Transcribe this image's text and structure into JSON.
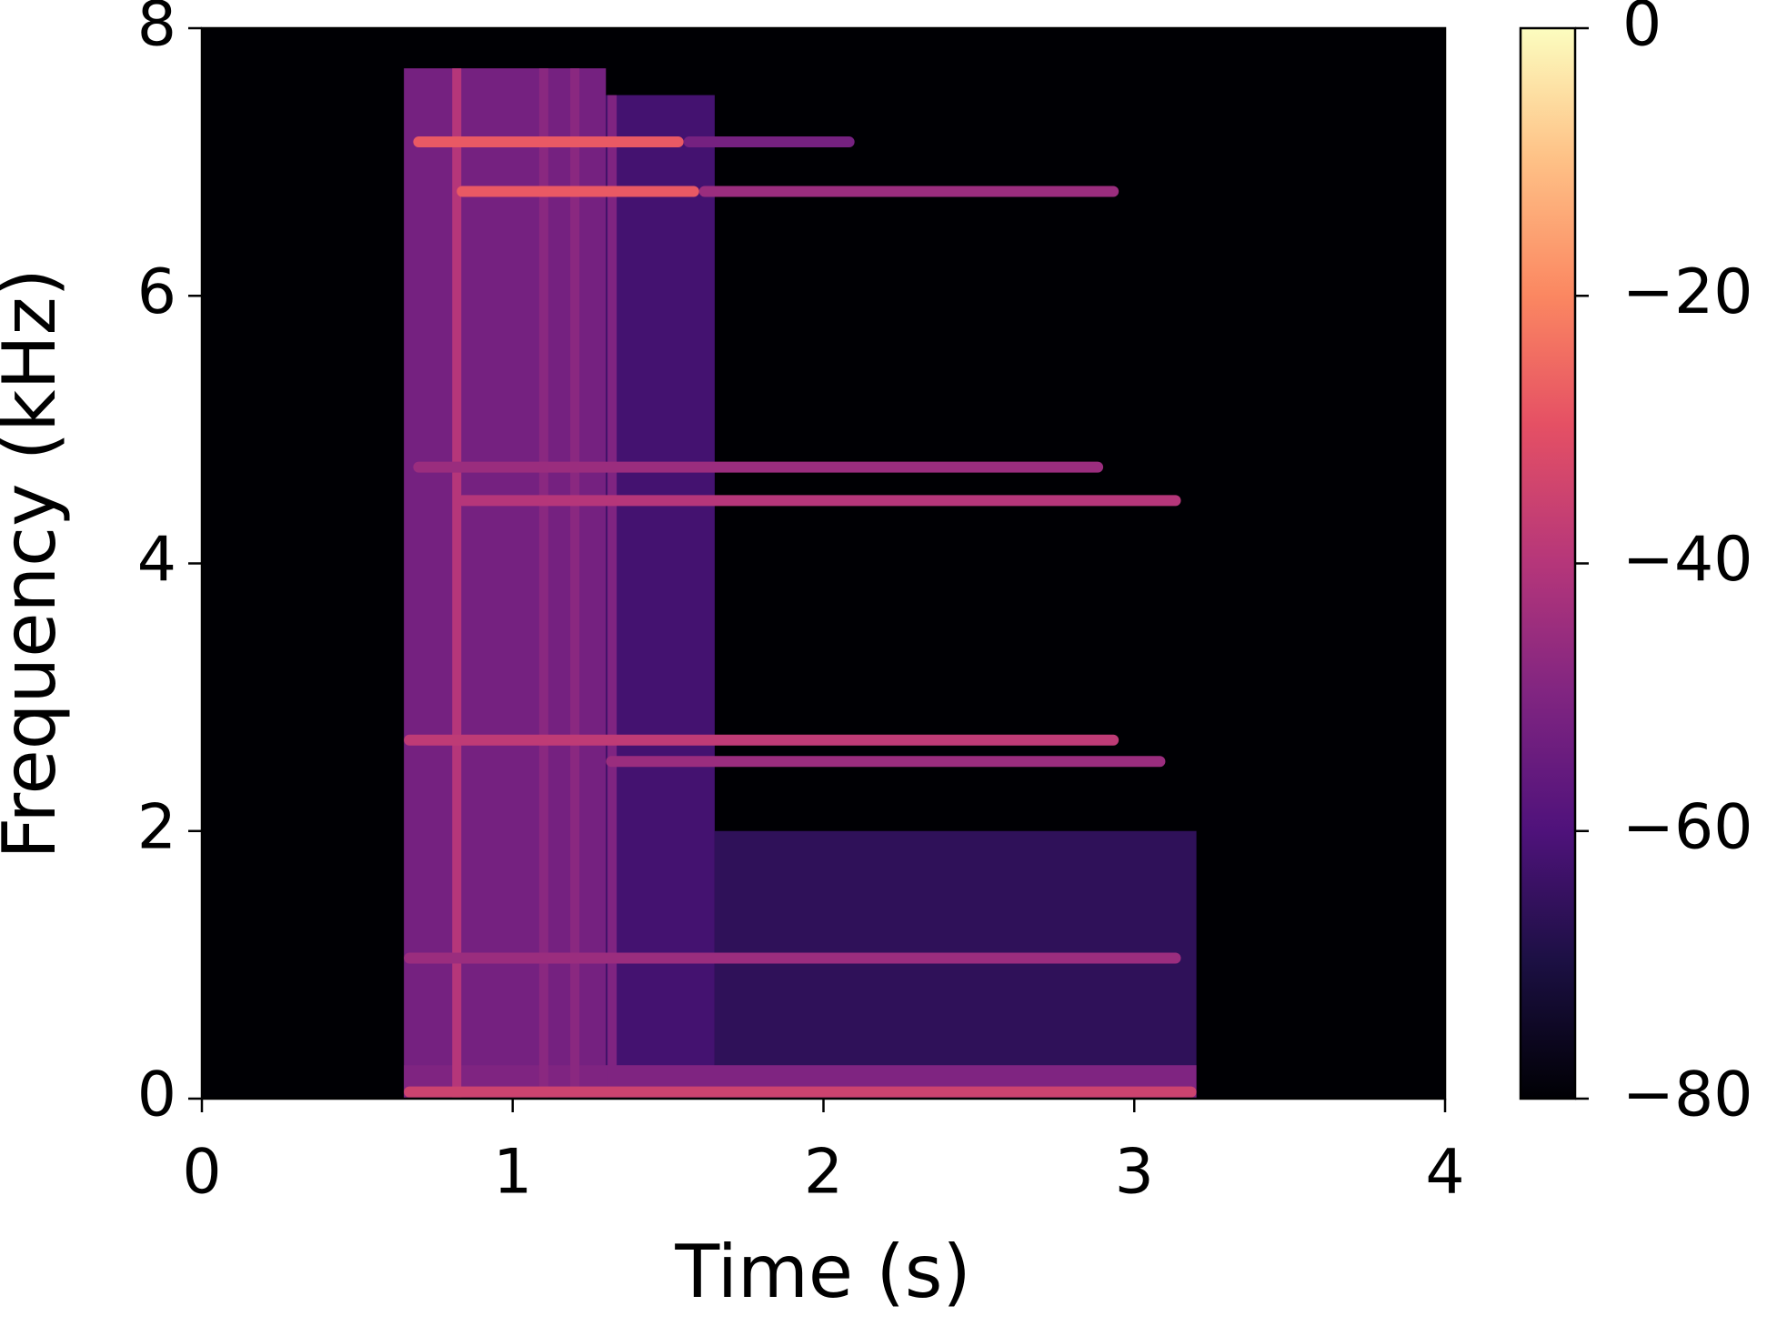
{
  "chart_data": {
    "type": "spectrogram",
    "colormap": "magma",
    "xlabel": "Time (s)",
    "ylabel": "Frequency (kHz)",
    "xlim": [
      0,
      4
    ],
    "xticks": [
      0,
      1,
      2,
      3,
      4
    ],
    "ylim": [
      0,
      8
    ],
    "yticks": [
      0,
      2,
      4,
      6,
      8
    ],
    "clim": [
      -80,
      0
    ],
    "cticks": [
      0,
      {
        "value": -20,
        "label": "−20"
      },
      {
        "value": -40,
        "label": "−40"
      },
      {
        "value": -60,
        "label": "−60"
      },
      {
        "value": -80,
        "label": "−80"
      }
    ],
    "noise": [
      {
        "start": 0.65,
        "end": 1.3,
        "fmax": 7.7,
        "level": -52
      },
      {
        "start": 1.3,
        "end": 1.65,
        "fmax": 7.5,
        "level": -62
      },
      {
        "start": 1.65,
        "end": 3.2,
        "fmax": 2.0,
        "level": -66
      },
      {
        "start": 0.65,
        "end": 3.2,
        "fmax": 0.25,
        "level": -50
      }
    ],
    "clicks": [
      {
        "time": 0.82,
        "fmax": 7.7,
        "level": -40
      },
      {
        "time": 1.1,
        "fmax": 7.7,
        "level": -48
      },
      {
        "time": 1.2,
        "fmax": 7.7,
        "level": -48
      },
      {
        "time": 1.32,
        "fmax": 7.5,
        "level": -50
      }
    ],
    "tones": [
      {
        "freq": 7.15,
        "start": 0.68,
        "end": 1.55,
        "level": -28
      },
      {
        "freq": 7.15,
        "start": 1.55,
        "end": 2.1,
        "level": -52
      },
      {
        "freq": 6.78,
        "start": 0.82,
        "end": 1.6,
        "level": -28
      },
      {
        "freq": 6.78,
        "start": 1.6,
        "end": 2.95,
        "level": -45
      },
      {
        "freq": 4.72,
        "start": 0.68,
        "end": 2.9,
        "level": -45
      },
      {
        "freq": 4.47,
        "start": 0.82,
        "end": 3.15,
        "level": -40
      },
      {
        "freq": 2.68,
        "start": 0.65,
        "end": 2.95,
        "level": -38
      },
      {
        "freq": 2.52,
        "start": 1.3,
        "end": 3.1,
        "level": -45
      },
      {
        "freq": 1.05,
        "start": 0.65,
        "end": 3.15,
        "level": -45
      },
      {
        "freq": 0.05,
        "start": 0.65,
        "end": 3.2,
        "level": -35
      }
    ]
  }
}
